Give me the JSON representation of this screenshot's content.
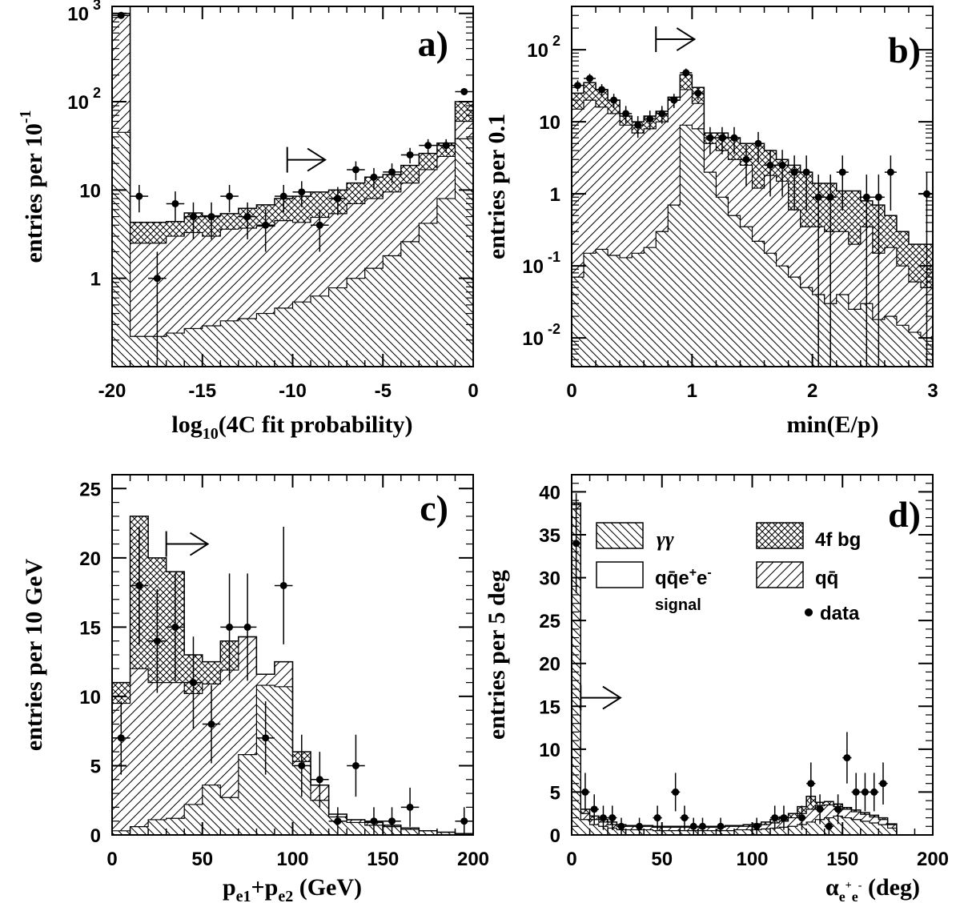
{
  "legend": {
    "gamma_gamma": "γγ",
    "fourf": "4f bg",
    "qqee_a": "q",
    "qqee_bar": "q̄",
    "qqee_e1": "e",
    "qqee_sup1": "+",
    "qqee_e2": "e",
    "qqee_sup2": "-",
    "qqee_sub": "signal",
    "qq": "qq̄",
    "data": "data"
  },
  "chart_data": [
    {
      "id": "a",
      "type": "histogram",
      "panel_label": "a)",
      "xlabel_main": "log",
      "xlabel_sub": "10",
      "xlabel_rest": "(4C fit probability)",
      "ylabel": "entries per 10",
      "ylabel_sup": "-1",
      "log_y": true,
      "xlim": [
        -20,
        0
      ],
      "ylim": [
        0.1,
        1200
      ],
      "xticks": [
        -20,
        -15,
        -10,
        -5,
        0
      ],
      "xtick_labels": [
        "-20",
        "-15",
        "-10",
        "-5",
        "0"
      ],
      "yticks": [
        {
          "v": 1,
          "base": "1",
          "exp": ""
        },
        {
          "v": 10,
          "base": "10",
          "exp": ""
        },
        {
          "v": 100,
          "base": "10",
          "exp": "2"
        },
        {
          "v": 1000,
          "base": "10",
          "exp": "3"
        }
      ],
      "bin_width": 1,
      "bins_x0": [
        -20,
        -19,
        -18,
        -17,
        -16,
        -15,
        -14,
        -13,
        -12,
        -11,
        -10,
        -9,
        -8,
        -7,
        -6,
        -5,
        -4,
        -3,
        -2,
        -1
      ],
      "gg_top": [
        45,
        0.22,
        0.22,
        0.24,
        0.27,
        0.29,
        0.33,
        0.35,
        0.4,
        0.46,
        0.54,
        0.63,
        0.78,
        1.0,
        1.3,
        1.8,
        2.6,
        4.2,
        8,
        38
      ],
      "qq_top": [
        1000,
        2.5,
        2.5,
        3.0,
        3.3,
        3.0,
        3.6,
        3.7,
        3.9,
        4.5,
        4.3,
        4.9,
        5.4,
        7.0,
        8.0,
        9.5,
        12,
        17,
        24,
        60
      ],
      "fourf_top": [
        1000,
        4.3,
        4.3,
        4.4,
        5.5,
        5.1,
        5.4,
        6.2,
        6.8,
        8.0,
        8.5,
        9.5,
        10,
        12,
        14,
        15,
        19,
        26,
        34,
        100
      ],
      "points": [
        {
          "x": -19.5,
          "y": 950
        },
        {
          "x": -18.5,
          "y": 8.5
        },
        {
          "x": -17.5,
          "y": 1.0
        },
        {
          "x": -16.5,
          "y": 7.0
        },
        {
          "x": -15.5,
          "y": 5.0
        },
        {
          "x": -14.5,
          "y": 5.0
        },
        {
          "x": -13.5,
          "y": 8.5
        },
        {
          "x": -12.5,
          "y": 5.0
        },
        {
          "x": -11.5,
          "y": 4.0
        },
        {
          "x": -10.5,
          "y": 8.5
        },
        {
          "x": -9.5,
          "y": 9.5
        },
        {
          "x": -8.5,
          "y": 4.0
        },
        {
          "x": -7.5,
          "y": 8.0
        },
        {
          "x": -6.5,
          "y": 17
        },
        {
          "x": -5.5,
          "y": 14
        },
        {
          "x": -4.5,
          "y": 16
        },
        {
          "x": -3.5,
          "y": 25
        },
        {
          "x": -2.5,
          "y": 32
        },
        {
          "x": -1.5,
          "y": 32
        },
        {
          "x": -0.5,
          "y": 130
        }
      ],
      "arrow": {
        "x0": -10.3,
        "x1": -8.2,
        "y": 22
      }
    },
    {
      "id": "b",
      "type": "histogram",
      "panel_label": "b)",
      "xlabel_main": "min(E/p)",
      "xlabel_sub": "",
      "xlabel_rest": "",
      "ylabel": "entries per 0.1",
      "ylabel_sup": "",
      "log_y": true,
      "xlim": [
        0,
        3
      ],
      "ylim": [
        0.004,
        400
      ],
      "xticks": [
        0,
        1,
        2,
        3
      ],
      "xtick_labels": [
        "0",
        "1",
        "2",
        "3"
      ],
      "yticks": [
        {
          "v": 0.01,
          "base": "10",
          "exp": "-2"
        },
        {
          "v": 0.1,
          "base": "10",
          "exp": "-1"
        },
        {
          "v": 1,
          "base": "1",
          "exp": ""
        },
        {
          "v": 10,
          "base": "10",
          "exp": ""
        },
        {
          "v": 100,
          "base": "10",
          "exp": "2"
        }
      ],
      "bin_width": 0.1,
      "bins_x0": [
        0,
        0.1,
        0.2,
        0.3,
        0.4,
        0.5,
        0.6,
        0.7,
        0.8,
        0.9,
        1.0,
        1.1,
        1.2,
        1.3,
        1.4,
        1.5,
        1.6,
        1.7,
        1.8,
        1.9,
        2.0,
        2.1,
        2.2,
        2.3,
        2.4,
        2.5,
        2.6,
        2.7,
        2.8,
        2.9
      ],
      "gg_top": [
        0.07,
        0.15,
        0.17,
        0.14,
        0.13,
        0.15,
        0.18,
        0.3,
        0.7,
        9,
        8,
        2,
        0.9,
        0.5,
        0.35,
        0.22,
        0.15,
        0.1,
        0.07,
        0.05,
        0.04,
        0.03,
        0.04,
        0.025,
        0.03,
        0.018,
        0.02,
        0.015,
        0.012,
        0.01
      ],
      "qq_top": [
        15,
        20,
        16,
        13,
        9,
        7,
        8,
        10,
        20,
        28,
        18,
        5,
        4,
        3,
        2.5,
        1.2,
        1.8,
        1.5,
        0.6,
        0.35,
        0.35,
        0.3,
        0.3,
        0.2,
        0.35,
        0.15,
        0.18,
        0.1,
        0.06,
        0.05
      ],
      "fourf_top": [
        25,
        35,
        28,
        20,
        12,
        10,
        12,
        14,
        22,
        45,
        30,
        7,
        7,
        6,
        5,
        5,
        4,
        3,
        2.5,
        2,
        1.4,
        1.4,
        1.1,
        1.1,
        0.8,
        0.7,
        0.5,
        0.3,
        0.2,
        0.2
      ],
      "points": [
        {
          "x": 0.05,
          "y": 32
        },
        {
          "x": 0.15,
          "y": 40
        },
        {
          "x": 0.25,
          "y": 28
        },
        {
          "x": 0.35,
          "y": 20
        },
        {
          "x": 0.45,
          "y": 13
        },
        {
          "x": 0.55,
          "y": 9
        },
        {
          "x": 0.65,
          "y": 11
        },
        {
          "x": 0.75,
          "y": 13
        },
        {
          "x": 0.85,
          "y": 20
        },
        {
          "x": 0.95,
          "y": 48
        },
        {
          "x": 1.05,
          "y": 25
        },
        {
          "x": 1.15,
          "y": 6
        },
        {
          "x": 1.25,
          "y": 6
        },
        {
          "x": 1.35,
          "y": 6
        },
        {
          "x": 1.45,
          "y": 3
        },
        {
          "x": 1.55,
          "y": 5
        },
        {
          "x": 1.65,
          "y": 2.5
        },
        {
          "x": 1.75,
          "y": 2.5
        },
        {
          "x": 1.85,
          "y": 2
        },
        {
          "x": 1.95,
          "y": 2
        },
        {
          "x": 2.05,
          "y": 0.9
        },
        {
          "x": 2.15,
          "y": 0.9
        },
        {
          "x": 2.25,
          "y": 2.0
        },
        {
          "x": 2.45,
          "y": 0.9
        },
        {
          "x": 2.55,
          "y": 0.9
        },
        {
          "x": 2.65,
          "y": 2.0
        },
        {
          "x": 2.95,
          "y": 1.0
        }
      ],
      "arrow": {
        "x0": 0.7,
        "x1": 1.02,
        "y": 140
      }
    },
    {
      "id": "c",
      "type": "histogram",
      "panel_label": "c)",
      "xlabel_main": "p",
      "xlabel_sub": "e1",
      "xlabel_rest": "+p",
      "xlabel_sub2": "e2",
      "xlabel_rest2": " (GeV)",
      "ylabel": "entries per 10 GeV",
      "ylabel_sup": "",
      "log_y": false,
      "xlim": [
        0,
        200
      ],
      "ylim": [
        0,
        26
      ],
      "xticks": [
        0,
        50,
        100,
        150,
        200
      ],
      "xtick_labels": [
        "0",
        "50",
        "100",
        "150",
        "200"
      ],
      "yticks": [
        {
          "v": 0,
          "base": "0",
          "exp": ""
        },
        {
          "v": 5,
          "base": "5",
          "exp": ""
        },
        {
          "v": 10,
          "base": "10",
          "exp": ""
        },
        {
          "v": 15,
          "base": "15",
          "exp": ""
        },
        {
          "v": 20,
          "base": "20",
          "exp": ""
        },
        {
          "v": 25,
          "base": "25",
          "exp": ""
        }
      ],
      "bin_width": 10,
      "bins_x0": [
        0,
        10,
        20,
        30,
        40,
        50,
        60,
        70,
        80,
        90,
        100,
        110,
        120,
        130,
        140,
        150,
        160,
        170,
        180,
        190
      ],
      "gg_top": [
        0.3,
        0.6,
        1.1,
        1.2,
        2.2,
        3.6,
        2.7,
        5.8,
        10.8,
        10.7,
        5.0,
        2.5,
        1.3,
        0.9,
        0.7,
        0.6,
        0.4,
        0.3,
        0.2,
        0.1
      ],
      "qq_top": [
        9.5,
        12,
        11,
        11,
        10.2,
        10.9,
        11.9,
        14.3,
        11.6,
        12.5,
        5.3,
        3.6,
        1.5,
        1.1,
        0.9,
        0.7,
        0.5,
        0.3,
        0.2,
        0.1
      ],
      "fourf_top": [
        11,
        23,
        20,
        19,
        13,
        12.5,
        14,
        14.3,
        11.6,
        12.5,
        6,
        3.6,
        1.5,
        1.1,
        0.9,
        0.7,
        0.5,
        0.3,
        0.2,
        0.1
      ],
      "points": [
        {
          "x": 5,
          "y": 7
        },
        {
          "x": 15,
          "y": 18
        },
        {
          "x": 25,
          "y": 14
        },
        {
          "x": 35,
          "y": 15
        },
        {
          "x": 45,
          "y": 11
        },
        {
          "x": 55,
          "y": 8
        },
        {
          "x": 65,
          "y": 15
        },
        {
          "x": 75,
          "y": 15
        },
        {
          "x": 85,
          "y": 7
        },
        {
          "x": 95,
          "y": 18
        },
        {
          "x": 105,
          "y": 5
        },
        {
          "x": 115,
          "y": 4
        },
        {
          "x": 125,
          "y": 1
        },
        {
          "x": 135,
          "y": 5
        },
        {
          "x": 145,
          "y": 1
        },
        {
          "x": 155,
          "y": 1
        },
        {
          "x": 165,
          "y": 2
        },
        {
          "x": 195,
          "y": 1
        }
      ],
      "arrow": {
        "x0": 30,
        "x1": 53,
        "y": 21
      }
    },
    {
      "id": "d",
      "type": "histogram",
      "panel_label": "d)",
      "xlabel_main": "α",
      "xlabel_sub": "e",
      "xlabel_sup": "+",
      "xlabel_sub3": "e",
      "xlabel_sup2": "-",
      "xlabel_rest": " (deg)",
      "ylabel": "entries per 5 deg",
      "ylabel_sup": "",
      "log_y": false,
      "xlim": [
        0,
        200
      ],
      "ylim": [
        0,
        42
      ],
      "xticks": [
        0,
        50,
        100,
        150,
        200
      ],
      "xtick_labels": [
        "0",
        "50",
        "100",
        "150",
        "200"
      ],
      "yticks": [
        {
          "v": 0,
          "base": "0",
          "exp": ""
        },
        {
          "v": 5,
          "base": "5",
          "exp": ""
        },
        {
          "v": 10,
          "base": "10",
          "exp": ""
        },
        {
          "v": 15,
          "base": "15",
          "exp": ""
        },
        {
          "v": 20,
          "base": "20",
          "exp": ""
        },
        {
          "v": 25,
          "base": "25",
          "exp": ""
        },
        {
          "v": 30,
          "base": "30",
          "exp": ""
        },
        {
          "v": 35,
          "base": "35",
          "exp": ""
        },
        {
          "v": 40,
          "base": "40",
          "exp": ""
        }
      ],
      "bin_width": 5,
      "bins_x0": [
        0,
        5,
        10,
        15,
        20,
        25,
        30,
        35,
        40,
        45,
        50,
        55,
        60,
        65,
        70,
        75,
        80,
        85,
        90,
        95,
        100,
        105,
        110,
        115,
        120,
        125,
        130,
        135,
        140,
        145,
        150,
        155,
        160,
        165,
        170,
        175
      ],
      "gg_top": [
        38,
        1.8,
        1.2,
        1.0,
        0.8,
        0.6,
        0.6,
        0.6,
        0.6,
        0.5,
        0.5,
        0.5,
        0.5,
        0.5,
        0.5,
        0.5,
        0.5,
        0.5,
        0.6,
        0.6,
        0.6,
        0.7,
        0.8,
        0.9,
        1.0,
        1.2,
        1.5,
        1.8,
        2.0,
        2.2,
        2.0,
        1.8,
        1.6,
        1.4,
        1.2,
        0.8
      ],
      "qq_top": [
        38.5,
        2.5,
        1.8,
        1.5,
        1.2,
        1.0,
        1.0,
        1.0,
        1.0,
        0.9,
        0.9,
        0.9,
        0.9,
        0.9,
        0.9,
        0.9,
        0.9,
        1.0,
        1.0,
        1.0,
        1.1,
        1.2,
        1.4,
        1.6,
        2.0,
        2.5,
        3.0,
        3.4,
        3.5,
        3.3,
        3.0,
        2.7,
        2.4,
        2.1,
        1.8,
        1.2
      ],
      "fourf_top": [
        38.7,
        3.0,
        2.2,
        1.8,
        1.5,
        1.2,
        1.1,
        1.1,
        1.1,
        1.0,
        1.0,
        1.0,
        1.0,
        1.0,
        1.0,
        1.0,
        1.0,
        1.1,
        1.1,
        1.2,
        1.3,
        1.5,
        1.8,
        2.1,
        2.5,
        3.3,
        4.5,
        3.8,
        3.9,
        3.6,
        3.2,
        2.9,
        2.6,
        2.3,
        2.0,
        1.3
      ],
      "points": [
        {
          "x": 2.5,
          "y": 34
        },
        {
          "x": 7.5,
          "y": 5
        },
        {
          "x": 12.5,
          "y": 3
        },
        {
          "x": 17.5,
          "y": 2
        },
        {
          "x": 22.5,
          "y": 2
        },
        {
          "x": 27.5,
          "y": 1
        },
        {
          "x": 37.5,
          "y": 1
        },
        {
          "x": 47.5,
          "y": 2
        },
        {
          "x": 57.5,
          "y": 5
        },
        {
          "x": 62.5,
          "y": 2
        },
        {
          "x": 67.5,
          "y": 1
        },
        {
          "x": 72.5,
          "y": 1
        },
        {
          "x": 82.5,
          "y": 1
        },
        {
          "x": 102.5,
          "y": 1
        },
        {
          "x": 112.5,
          "y": 2
        },
        {
          "x": 117.5,
          "y": 2
        },
        {
          "x": 127.5,
          "y": 2
        },
        {
          "x": 132.5,
          "y": 6
        },
        {
          "x": 137.5,
          "y": 3
        },
        {
          "x": 142.5,
          "y": 1
        },
        {
          "x": 147.5,
          "y": 3
        },
        {
          "x": 152.5,
          "y": 9
        },
        {
          "x": 157.5,
          "y": 5
        },
        {
          "x": 162.5,
          "y": 5
        },
        {
          "x": 167.5,
          "y": 5
        },
        {
          "x": 172.5,
          "y": 6
        }
      ],
      "arrow": {
        "x0": 5,
        "x1": 27,
        "y": 16
      }
    }
  ]
}
